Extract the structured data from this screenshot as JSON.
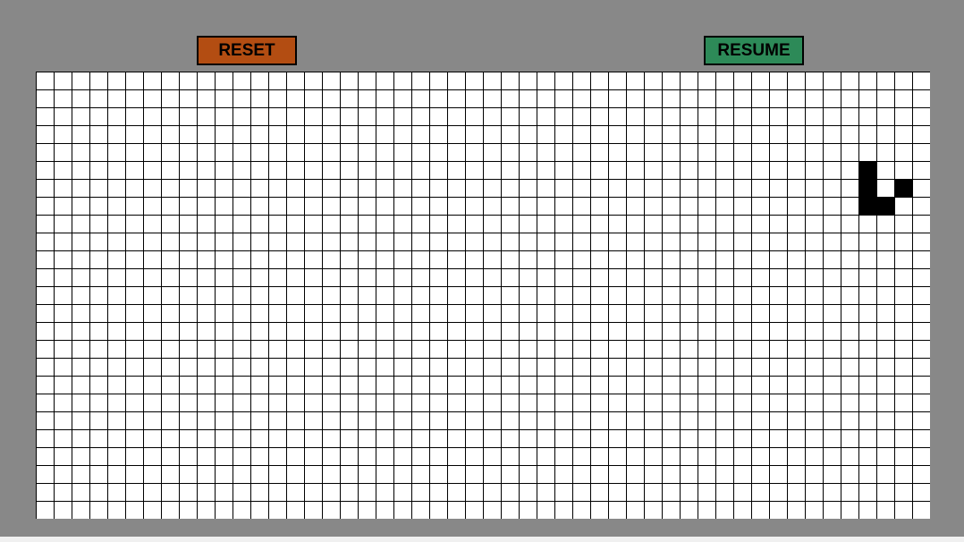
{
  "controls": {
    "reset_label": "RESET",
    "resume_label": "RESUME"
  },
  "colors": {
    "frame": "#888888",
    "reset_button": "#b34d12",
    "resume_button": "#2d8a58",
    "cell_alive": "#000000",
    "cell_dead": "#ffffff",
    "grid_line": "#000000"
  },
  "board": {
    "columns": 50,
    "rows": 25,
    "live_cells": [
      {
        "col": 46,
        "row": 5
      },
      {
        "col": 46,
        "row": 6
      },
      {
        "col": 48,
        "row": 6
      },
      {
        "col": 46,
        "row": 7
      },
      {
        "col": 47,
        "row": 7
      }
    ]
  }
}
